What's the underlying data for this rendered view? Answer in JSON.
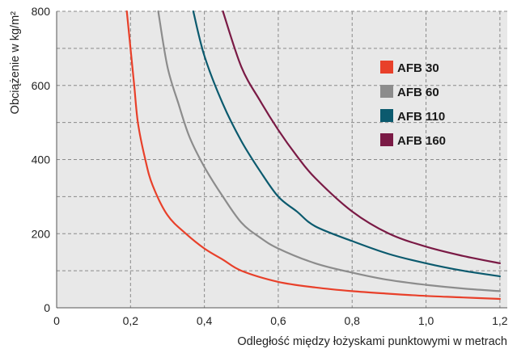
{
  "chart_data": {
    "type": "line",
    "title": "",
    "xlabel": "Odległość między łożyskami punktowymi w metrach",
    "ylabel": "Obciążenie w kg/m²",
    "xlim": [
      0,
      1.22
    ],
    "ylim": [
      0,
      800
    ],
    "x_ticks": [
      0,
      0.2,
      0.4,
      0.6,
      0.8,
      1.0,
      1.2
    ],
    "x_tick_labels": [
      "0",
      "0,2",
      "0,4",
      "0,6",
      "0,8",
      "1,0",
      "1,2"
    ],
    "y_ticks": [
      0,
      200,
      400,
      600,
      800
    ],
    "y_tick_labels": [
      "0",
      "200",
      "400",
      "600",
      "800"
    ],
    "grid": true,
    "grid_style": "dashed",
    "plot_background": "#e8e8e8",
    "legend_placement": "upper-right",
    "series": [
      {
        "name": "AFB 30",
        "color": "#e8402a",
        "points": [
          [
            0.19,
            800
          ],
          [
            0.2,
            700
          ],
          [
            0.21,
            600
          ],
          [
            0.22,
            500
          ],
          [
            0.24,
            400
          ],
          [
            0.26,
            330
          ],
          [
            0.3,
            250
          ],
          [
            0.35,
            200
          ],
          [
            0.4,
            160
          ],
          [
            0.45,
            130
          ],
          [
            0.5,
            100
          ],
          [
            0.6,
            70
          ],
          [
            0.7,
            55
          ],
          [
            0.8,
            45
          ],
          [
            0.9,
            38
          ],
          [
            1.0,
            32
          ],
          [
            1.1,
            28
          ],
          [
            1.2,
            24
          ]
        ]
      },
      {
        "name": "AFB 60",
        "color": "#8c8c8c",
        "points": [
          [
            0.275,
            800
          ],
          [
            0.3,
            650
          ],
          [
            0.33,
            550
          ],
          [
            0.36,
            460
          ],
          [
            0.4,
            380
          ],
          [
            0.45,
            300
          ],
          [
            0.5,
            230
          ],
          [
            0.55,
            190
          ],
          [
            0.6,
            160
          ],
          [
            0.7,
            120
          ],
          [
            0.8,
            95
          ],
          [
            0.9,
            75
          ],
          [
            1.0,
            62
          ],
          [
            1.1,
            52
          ],
          [
            1.2,
            45
          ]
        ]
      },
      {
        "name": "AFB 110",
        "color": "#0b5a6e",
        "points": [
          [
            0.37,
            800
          ],
          [
            0.4,
            680
          ],
          [
            0.45,
            550
          ],
          [
            0.5,
            450
          ],
          [
            0.55,
            370
          ],
          [
            0.6,
            300
          ],
          [
            0.65,
            260
          ],
          [
            0.7,
            220
          ],
          [
            0.8,
            180
          ],
          [
            0.9,
            145
          ],
          [
            1.0,
            120
          ],
          [
            1.1,
            100
          ],
          [
            1.2,
            85
          ]
        ]
      },
      {
        "name": "AFB 160",
        "color": "#7a1a45",
        "points": [
          [
            0.45,
            800
          ],
          [
            0.5,
            650
          ],
          [
            0.55,
            560
          ],
          [
            0.6,
            480
          ],
          [
            0.65,
            410
          ],
          [
            0.7,
            350
          ],
          [
            0.8,
            260
          ],
          [
            0.9,
            200
          ],
          [
            1.0,
            165
          ],
          [
            1.1,
            140
          ],
          [
            1.2,
            120
          ]
        ]
      }
    ]
  }
}
